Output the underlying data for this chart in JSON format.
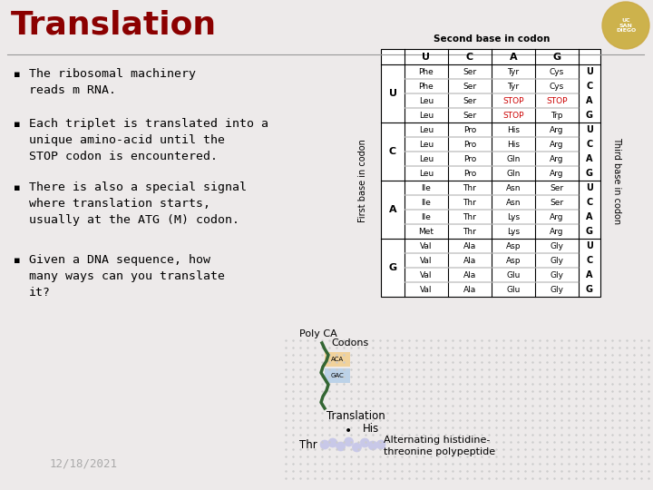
{
  "title": "Translation",
  "title_color": "#8B0000",
  "title_fontsize": 26,
  "background_color": "#EDEAEA",
  "bullet_points": [
    "The ribosomal machinery\nreads m RNA.",
    "Each triplet is translated into a\nunique amino-acid until the\nSTOP codon is encountered.",
    "There is also a special signal\nwhere translation starts,\nusually at the ATG (M) codon.",
    "Given a DNA sequence, how\nmany ways can you translate\nit?"
  ],
  "bullet_fontsize": 9.5,
  "date_text": "12/18/2021",
  "date_color": "#AAAAAA",
  "date_fontsize": 9,
  "codon_table": {
    "second_bases": [
      "U",
      "C",
      "A",
      "G"
    ],
    "first_bases": [
      "U",
      "C",
      "A",
      "G"
    ],
    "third_bases": [
      "U",
      "C",
      "A",
      "G"
    ],
    "cells": {
      "UU": [
        "Phe",
        "Phe",
        "Leu",
        "Leu"
      ],
      "UC": [
        "Ser",
        "Ser",
        "Ser",
        "Ser"
      ],
      "UA": [
        "Tyr",
        "Tyr",
        "STOP",
        "STOP"
      ],
      "UG": [
        "Cys",
        "Cys",
        "STOP",
        "Trp"
      ],
      "CU": [
        "Leu",
        "Leu",
        "Leu",
        "Leu"
      ],
      "CC": [
        "Pro",
        "Pro",
        "Pro",
        "Pro"
      ],
      "CA": [
        "His",
        "His",
        "Gln",
        "Gln"
      ],
      "CG": [
        "Arg",
        "Arg",
        "Arg",
        "Arg"
      ],
      "AU": [
        "Ile",
        "Ile",
        "Ile",
        "Met"
      ],
      "AC": [
        "Thr",
        "Thr",
        "Thr",
        "Thr"
      ],
      "AA": [
        "Asn",
        "Asn",
        "Lys",
        "Lys"
      ],
      "AG": [
        "Ser",
        "Ser",
        "Arg",
        "Arg"
      ],
      "GU": [
        "Val",
        "Val",
        "Val",
        "Val"
      ],
      "GC": [
        "Ala",
        "Ala",
        "Ala",
        "Ala"
      ],
      "GA": [
        "Asp",
        "Asp",
        "Glu",
        "Glu"
      ],
      "GG": [
        "Gly",
        "Gly",
        "Gly",
        "Gly"
      ]
    },
    "stop_cells": [
      "STOP"
    ]
  },
  "bottom_labels": {
    "poly_ca": "Poly CA",
    "codons": "Codons",
    "translation": "Translation",
    "his": "His",
    "thr": "Thr",
    "alternating": "Alternating histidine-\nthreonine polypeptide"
  },
  "line_color": "#999999"
}
